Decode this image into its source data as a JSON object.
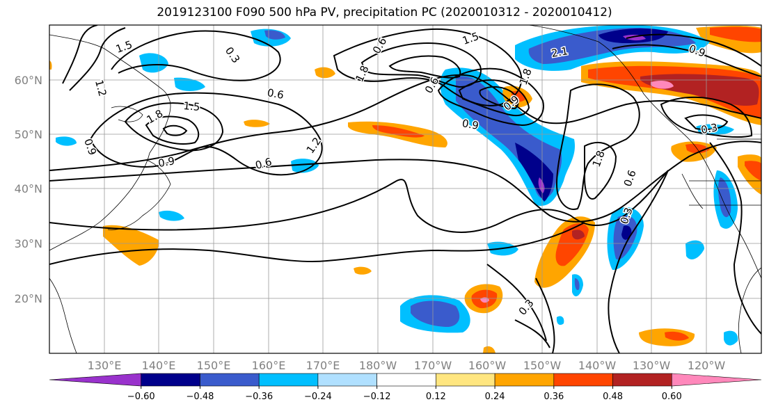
{
  "title": "2019123100 F090 500 hPa PV, precipitation PC (2020010312 - 2020010412)",
  "map": {
    "lat_labels": [
      "60°N",
      "50°N",
      "40°N",
      "30°N",
      "20°N"
    ],
    "lon_labels": [
      "130°E",
      "140°E",
      "150°E",
      "160°E",
      "170°E",
      "180°W",
      "170°W",
      "160°W",
      "150°W",
      "140°W",
      "130°W",
      "120°W"
    ],
    "lat_range": [
      10,
      70
    ],
    "lon_range": [
      120,
      250
    ],
    "grid": true,
    "contour_labels": [
      "1.5",
      "0.3",
      "1.2",
      "0.6",
      "1.5",
      "1.8",
      "0.9",
      "0.9",
      "0.6",
      "1.2",
      "0.6",
      "1.8",
      "1.5",
      "0.9",
      "0.6",
      "2.1",
      "0.9",
      "1.8",
      "0.6",
      "0.3",
      "0.3",
      "1.8",
      "0.3",
      "0.9"
    ]
  },
  "colorbar": {
    "ticks": [
      "-0.60",
      "-0.48",
      "-0.36",
      "-0.24",
      "-0.12",
      "0.12",
      "0.24",
      "0.36",
      "0.48",
      "0.60"
    ],
    "colors": [
      "#9932cc",
      "#00008b",
      "#3a5bcc",
      "#00bfff",
      "#b0e0ff",
      "#ffffff",
      "#ffe680",
      "#ffa500",
      "#ff4500",
      "#b22222",
      "#ff88bb"
    ]
  }
}
